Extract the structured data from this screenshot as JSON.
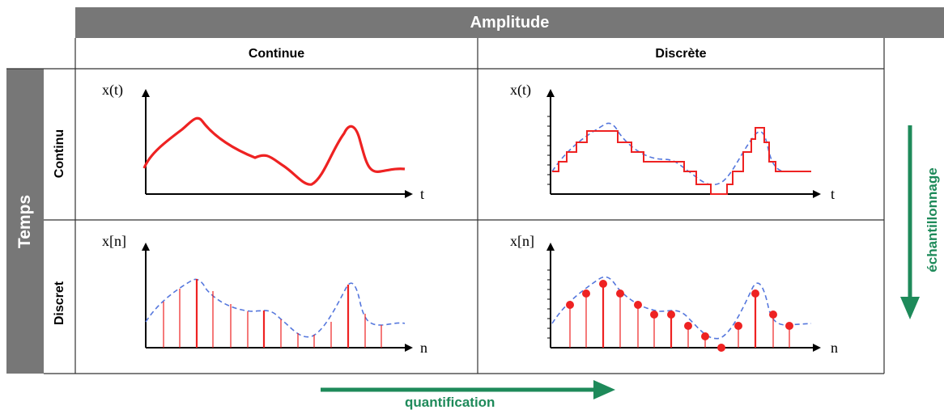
{
  "header": {
    "amplitude": "Amplitude",
    "temps": "Temps"
  },
  "columns": {
    "continue": "Continue",
    "discrete": "Discrète"
  },
  "rows": {
    "continu": "Continu",
    "discret": "Discret"
  },
  "axes": {
    "xt": "x(t)",
    "xn": "x[n]",
    "t": "t",
    "n": "n"
  },
  "arrows": {
    "quantification": "quantification",
    "echantillonnage": "échantillonnage"
  },
  "colors": {
    "header_bg": "#777777",
    "signal": "#ee2222",
    "envelope": "#5577dd",
    "arrow": "#1e8a5a"
  }
}
